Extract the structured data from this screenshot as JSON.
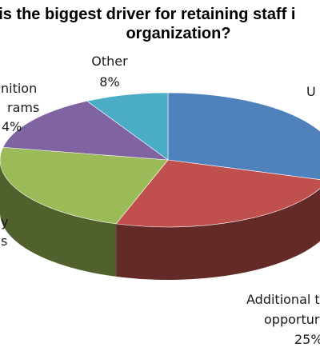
{
  "chart_data": {
    "type": "pie",
    "style": "3d",
    "title_lines": [
      "hat is the biggest driver for retaining staff i",
      "organization?"
    ],
    "slices": [
      {
        "value": 30,
        "color": "#4f81bd",
        "label_lines": [
          "U"
        ]
      },
      {
        "value": 25,
        "color": "#c0504d",
        "label_lines": [
          "Additional t",
          "opportur",
          "25%"
        ]
      },
      {
        "value": 23,
        "color": "#9bbb59",
        "label_lines": [
          "y",
          "s"
        ]
      },
      {
        "value": 14,
        "color": "#8064a2",
        "label_lines": [
          "nition",
          "rams",
          "4%"
        ]
      },
      {
        "value": 8,
        "color": "#4bacc6",
        "label_lines": [
          "Other",
          "8%"
        ]
      }
    ]
  }
}
